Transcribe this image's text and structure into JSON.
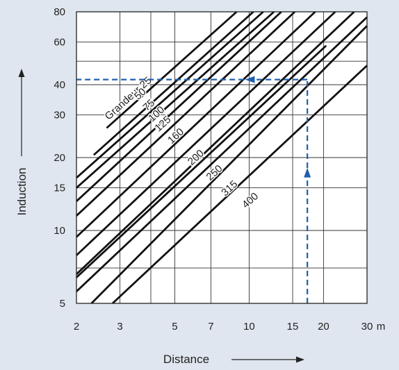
{
  "chart_data": {
    "type": "line",
    "xscale": "log",
    "yscale": "log",
    "xlim": [
      2,
      30
    ],
    "ylim": [
      5,
      80
    ],
    "grid": true,
    "x_ticks": [
      2,
      3,
      5,
      7,
      10,
      15,
      20,
      30
    ],
    "x_tick_labels": [
      "2",
      "3",
      "5",
      "7",
      "10",
      "15",
      "20",
      "30"
    ],
    "x_unit": "m",
    "y_ticks": [
      5,
      10,
      15,
      20,
      30,
      40,
      60,
      80
    ],
    "y_tick_labels": [
      "5",
      "10",
      "15",
      "20",
      "30",
      "40",
      "60",
      "80"
    ],
    "x_extra_grid": [
      4
    ],
    "y_extra_grid": [
      7,
      50
    ],
    "xlabel": "Distance",
    "ylabel": "Induction",
    "line_color": "#111111",
    "accent_color": "#1f5fae",
    "series_label_prefix": "Grandeur",
    "series": [
      {
        "name": "25",
        "x": [
          2.65,
          8.9
        ],
        "y": [
          26.5,
          80
        ]
      },
      {
        "name": "50",
        "x": [
          2.35,
          10.4
        ],
        "y": [
          20.5,
          80
        ]
      },
      {
        "name": "75",
        "x": [
          2.0,
          11.4
        ],
        "y": [
          16.5,
          80
        ]
      },
      {
        "name": "100",
        "x": [
          2.0,
          12.6
        ],
        "y": [
          15,
          80
        ]
      },
      {
        "name": "125",
        "x": [
          2.0,
          13.5
        ],
        "y": [
          13.2,
          80
        ]
      },
      {
        "name": "160",
        "x": [
          2.0,
          15.3
        ],
        "y": [
          11.5,
          80
        ]
      },
      {
        "name": "200",
        "x": [
          2.0,
          18.5
        ],
        "y": [
          9.4,
          80
        ]
      },
      {
        "name": "250",
        "x": [
          2.0,
          22.3
        ],
        "y": [
          7.9,
          80
        ]
      },
      {
        "name": "315",
        "x": [
          2.0,
          26.6
        ],
        "y": [
          6.6,
          80
        ]
      },
      {
        "name": "400",
        "x": [
          2.3,
          30.0
        ],
        "y": [
          5.0,
          70
        ]
      }
    ],
    "extra_lines": [
      {
        "x": [
          2.0,
          20.5
        ],
        "y": [
          6.4,
          58
        ]
      },
      {
        "x": [
          2.0,
          30.0
        ],
        "y": [
          5.6,
          76
        ]
      },
      {
        "x": [
          2.8,
          30.0
        ],
        "y": [
          5.0,
          48
        ]
      }
    ],
    "reading_example": {
      "x": 17.2,
      "y": 42,
      "start_y": 5,
      "end_x": 2
    }
  }
}
